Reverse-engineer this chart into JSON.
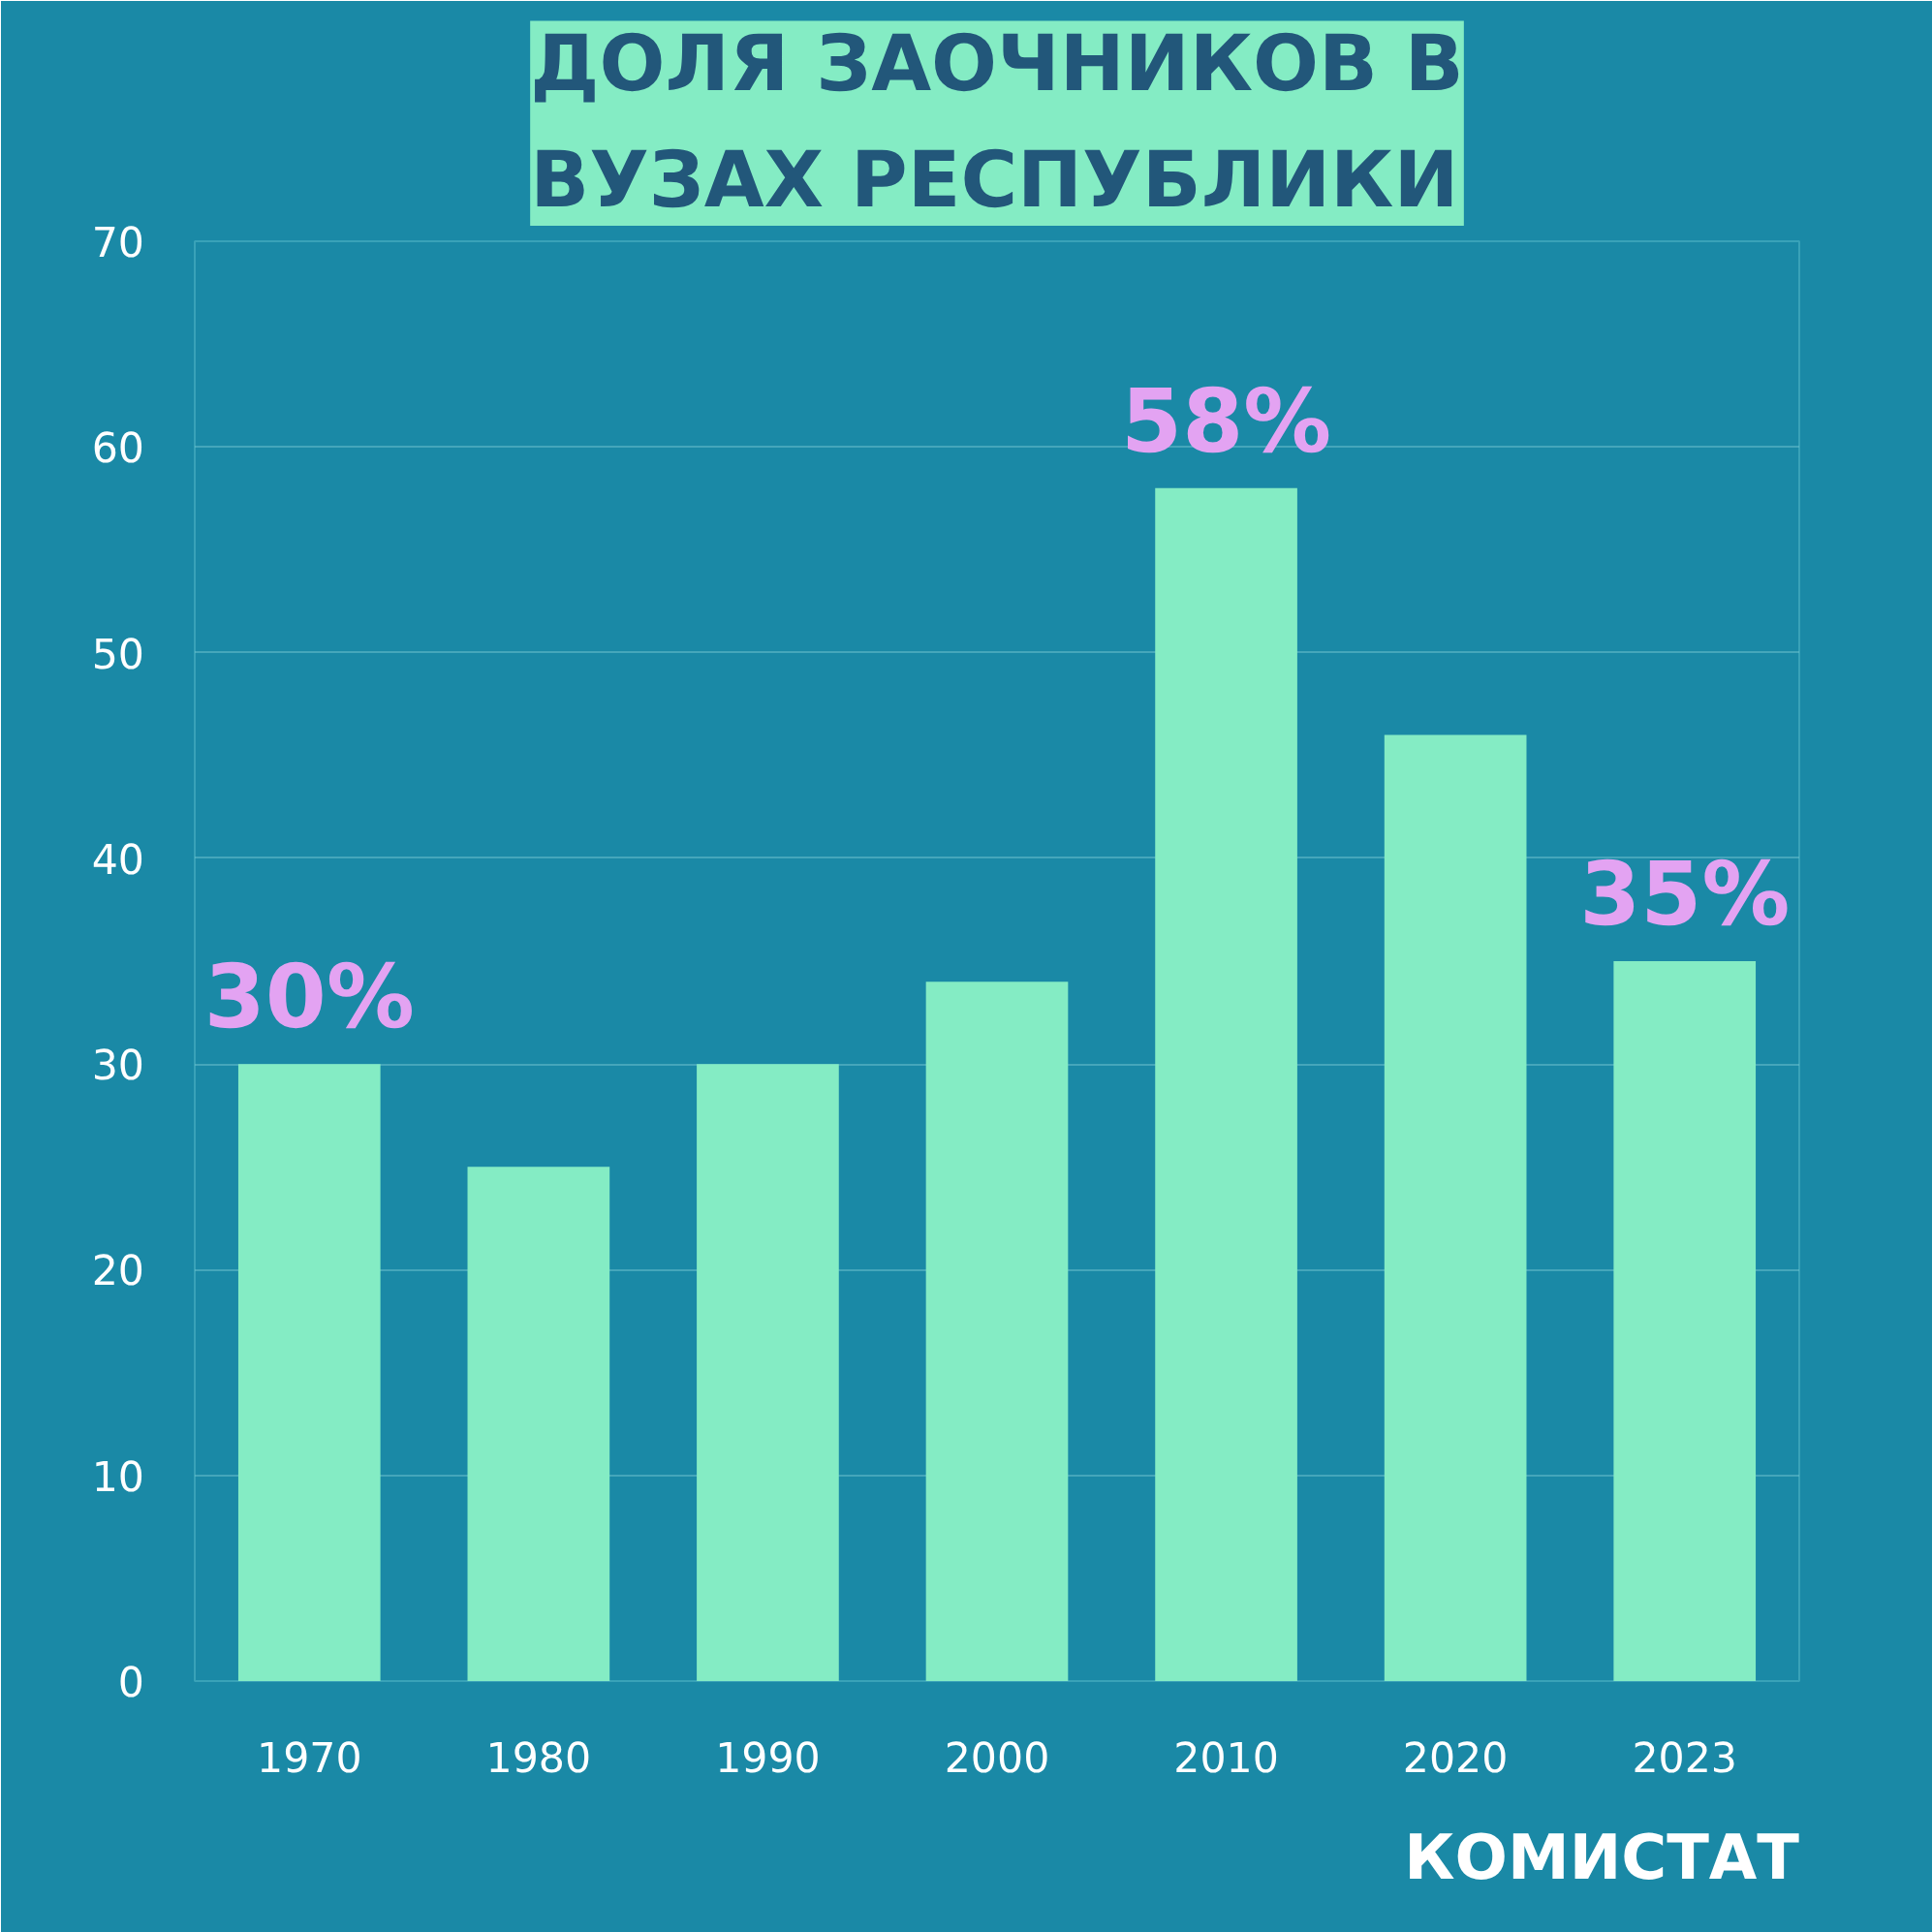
{
  "chart_data": {
    "type": "bar",
    "title": "ДОЛЯ ЗАОЧНИКОВ В ВУЗАХ РЕСПУБЛИКИ",
    "categories": [
      "1970",
      "1980",
      "1990",
      "2000",
      "2010",
      "2020",
      "2023"
    ],
    "values": [
      30,
      25,
      30,
      34,
      58,
      46,
      35
    ],
    "value_labels": [
      "30%",
      null,
      null,
      null,
      "58%",
      null,
      "35%"
    ],
    "color": "#84ecc4",
    "ylim": [
      0,
      70
    ],
    "yticks": [
      0,
      10,
      20,
      30,
      40,
      50,
      60,
      70
    ],
    "grid": "y",
    "annotations": [
      "КОМИСТАТ"
    ]
  }
}
